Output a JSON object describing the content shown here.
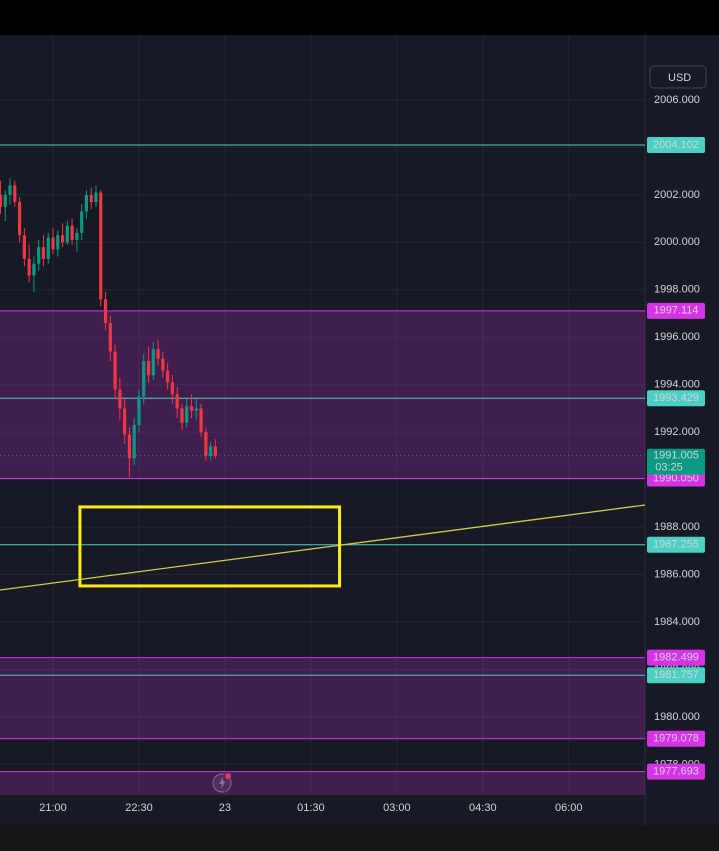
{
  "chart_data": {
    "type": "candlestick",
    "currency": "USD",
    "x": [
      20.083,
      20.167,
      20.25,
      20.333,
      20.417,
      20.5,
      20.583,
      20.667,
      20.75,
      20.833,
      20.917,
      21,
      21.083,
      21.167,
      21.25,
      21.333,
      21.417,
      21.5,
      21.583,
      21.667,
      21.75,
      21.833,
      21.917,
      22,
      22.083,
      22.167,
      22.25,
      22.333,
      22.417,
      22.5,
      22.583,
      22.667,
      22.75,
      22.833,
      22.917,
      23,
      23.083,
      23.167,
      23.25,
      23.333,
      23.417,
      23.5,
      23.583,
      23.667,
      23.75,
      23.833
    ],
    "open": [
      2002.0,
      2001.5,
      2002.0,
      2002.4,
      2001.7,
      2000.3,
      1999.3,
      1998.6,
      1999.1,
      1999.8,
      1999.3,
      2000.2,
      1999.7,
      2000.3,
      2000.0,
      2000.7,
      2000.1,
      2000.4,
      2001.3,
      2002.0,
      2001.7,
      2002.1,
      1997.6,
      1996.6,
      1995.4,
      1993.8,
      1993.0,
      1991.9,
      1990.9,
      1992.3,
      1993.5,
      1995.0,
      1994.4,
      1995.5,
      1995.1,
      1994.6,
      1994.1,
      1993.6,
      1993.0,
      1992.4,
      1993.1,
      1992.9,
      1993.0,
      1992.0,
      1991.0,
      1991.4
    ],
    "high": [
      2002.6,
      2002.2,
      2002.7,
      2002.6,
      2001.9,
      2000.6,
      1999.9,
      1999.4,
      2000.1,
      2000.3,
      2000.4,
      2000.6,
      2000.5,
      2000.8,
      2000.9,
      2001.0,
      2000.6,
      2001.6,
      2002.2,
      2002.3,
      2002.4,
      2002.2,
      1997.9,
      1996.9,
      1995.7,
      1994.3,
      1993.4,
      1992.2,
      1992.6,
      1993.8,
      1995.3,
      1995.6,
      1995.8,
      1995.9,
      1995.4,
      1994.9,
      1994.4,
      1993.9,
      1993.2,
      1993.4,
      1993.6,
      1993.4,
      1993.2,
      1992.2,
      1991.6,
      1991.7
    ],
    "low": [
      2001.2,
      2000.9,
      2001.6,
      2001.5,
      2000.0,
      1999.0,
      1998.3,
      1997.9,
      1998.8,
      1999.0,
      1999.1,
      1999.5,
      1999.4,
      1999.8,
      1999.9,
      1999.9,
      1999.6,
      2000.1,
      2001.0,
      2001.4,
      2001.5,
      1997.3,
      1996.3,
      1995.0,
      1993.4,
      1992.5,
      1991.5,
      1990.1,
      1990.6,
      1992.0,
      1993.2,
      1994.1,
      1994.2,
      1994.8,
      1994.3,
      1993.8,
      1993.2,
      1992.6,
      1992.1,
      1992.2,
      1992.6,
      1992.5,
      1991.8,
      1990.8,
      1990.8,
      1990.9
    ],
    "close": [
      2001.5,
      2002.0,
      2002.4,
      2001.7,
      2000.3,
      1999.3,
      1998.6,
      1999.1,
      1999.8,
      1999.3,
      2000.2,
      1999.7,
      2000.3,
      2000.0,
      2000.7,
      2000.1,
      2000.4,
      2001.3,
      2002.0,
      2001.7,
      2002.1,
      1997.6,
      1996.6,
      1995.4,
      1993.8,
      1993.0,
      1991.9,
      1990.9,
      1992.3,
      1993.5,
      1995.0,
      1994.4,
      1995.5,
      1995.1,
      1994.6,
      1994.1,
      1993.6,
      1993.0,
      1992.4,
      1993.1,
      1992.9,
      1993.0,
      1992.0,
      1991.0,
      1991.4,
      1991.005
    ],
    "up_color": "#089981",
    "down_color": "#f23645",
    "xlim": [
      20.075,
      31.33
    ],
    "xticks": [
      {
        "value": 21,
        "label": "21:00"
      },
      {
        "value": 22.5,
        "label": "22:30"
      },
      {
        "value": 24,
        "label": "23"
      },
      {
        "value": 25.5,
        "label": "01:30"
      },
      {
        "value": 27,
        "label": "03:00"
      },
      {
        "value": 28.5,
        "label": "04:30"
      },
      {
        "value": 30,
        "label": "06:00"
      }
    ],
    "ylim": [
      1976.71,
      2007.6
    ],
    "yticks": [
      {
        "value": 2006,
        "label": "2006.000"
      },
      {
        "value": 2004,
        "label": "2004.000"
      },
      {
        "value": 2002,
        "label": "2002.000"
      },
      {
        "value": 2000,
        "label": "2000.000"
      },
      {
        "value": 1998,
        "label": "1998.000"
      },
      {
        "value": 1996,
        "label": "1996.000"
      },
      {
        "value": 1994,
        "label": "1994.000"
      },
      {
        "value": 1992,
        "label": "1992.000"
      },
      {
        "value": 1990,
        "label": "1990.000"
      },
      {
        "value": 1988,
        "label": "1988.000"
      },
      {
        "value": 1986,
        "label": "1986.000"
      },
      {
        "value": 1984,
        "label": "1984.000"
      },
      {
        "value": 1982,
        "label": "1982.000"
      },
      {
        "value": 1980,
        "label": "1980.000"
      },
      {
        "value": 1978,
        "label": "1978.000"
      }
    ],
    "grid": true,
    "last_price": 1991.005,
    "countdown": "03:25",
    "levels": [
      {
        "value": 2004.102,
        "color": "#4dd0c4"
      },
      {
        "value": 1993.429,
        "color": "#4dd0c4"
      },
      {
        "value": 1987.255,
        "color": "#4dd0c4"
      },
      {
        "value": 1981.757,
        "color": "#4dd0c4"
      }
    ],
    "zones": [
      {
        "top": 1997.114,
        "bottom": {
          "value": 1990.05,
          "label": "1990.050"
        },
        "color": "#d633e6"
      },
      {
        "top": 1982.499,
        "bottom": 1979.078,
        "color": "#d633e6"
      },
      {
        "top": 1977.693,
        "color": "#d633e6"
      }
    ],
    "trend_line": {
      "x": [
        20.075,
        31.33
      ],
      "y": [
        1985.35,
        1988.93
      ],
      "color": "#d4c84a"
    },
    "box": {
      "x": [
        21.47,
        26.0
      ],
      "y": [
        1985.52,
        1988.85
      ],
      "color": "#ffeb1a"
    }
  }
}
